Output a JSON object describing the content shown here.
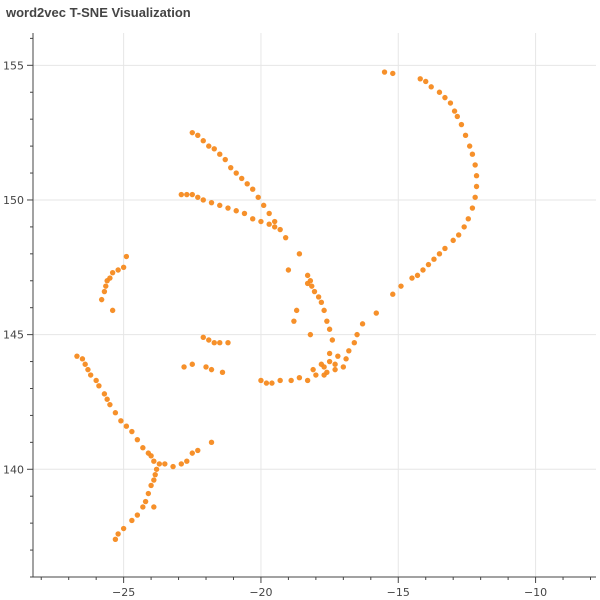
{
  "chart_data": {
    "type": "scatter",
    "title": "word2vec T-SNE Visualization",
    "xlabel": "",
    "ylabel": "",
    "xlim": [
      -28.3,
      -7.8
    ],
    "ylim": [
      136.0,
      156.2
    ],
    "x_ticks": [
      -25,
      -20,
      -15,
      -10
    ],
    "x_tick_labels": [
      "−25",
      "−20",
      "−15",
      "−10"
    ],
    "y_ticks": [
      140,
      145,
      150,
      155
    ],
    "y_tick_labels": [
      "140",
      "145",
      "150",
      "155"
    ],
    "grid": true,
    "legend": "none",
    "colors": {
      "point": "#f58a1f",
      "grid": "#e6e6e6",
      "axis": "#444444"
    },
    "series": [
      {
        "points": [
          [
            -15.5,
            154.75
          ],
          [
            -15.2,
            154.7
          ],
          [
            -14.2,
            154.5
          ],
          [
            -14.0,
            154.4
          ],
          [
            -13.8,
            154.2
          ],
          [
            -13.5,
            154.0
          ],
          [
            -13.3,
            153.8
          ],
          [
            -13.1,
            153.6
          ],
          [
            -12.95,
            153.3
          ],
          [
            -12.85,
            153.1
          ],
          [
            -12.7,
            152.8
          ],
          [
            -12.55,
            152.4
          ],
          [
            -12.4,
            152.0
          ],
          [
            -12.3,
            151.7
          ],
          [
            -12.2,
            151.3
          ],
          [
            -12.15,
            150.9
          ],
          [
            -12.15,
            150.5
          ],
          [
            -12.2,
            150.1
          ],
          [
            -12.3,
            149.7
          ],
          [
            -12.45,
            149.3
          ],
          [
            -12.6,
            149.0
          ],
          [
            -12.8,
            148.7
          ],
          [
            -13.0,
            148.5
          ],
          [
            -13.3,
            148.2
          ],
          [
            -13.5,
            148.0
          ],
          [
            -13.7,
            147.8
          ],
          [
            -13.9,
            147.6
          ],
          [
            -14.1,
            147.4
          ],
          [
            -14.3,
            147.2
          ],
          [
            -14.5,
            147.1
          ],
          [
            -14.9,
            146.8
          ],
          [
            -15.2,
            146.5
          ],
          [
            -15.8,
            145.8
          ],
          [
            -16.3,
            145.4
          ],
          [
            -16.5,
            145.0
          ],
          [
            -16.6,
            144.7
          ],
          [
            -16.8,
            144.4
          ],
          [
            -16.9,
            144.1
          ],
          [
            -17.0,
            143.8
          ],
          [
            -17.3,
            143.7
          ],
          [
            -17.6,
            143.6
          ],
          [
            -17.7,
            143.8
          ],
          [
            -17.8,
            143.9
          ],
          [
            -17.5,
            144.0
          ],
          [
            -17.2,
            144.2
          ],
          [
            -22.5,
            152.5
          ],
          [
            -22.3,
            152.4
          ],
          [
            -22.1,
            152.2
          ],
          [
            -21.9,
            152.0
          ],
          [
            -21.7,
            151.9
          ],
          [
            -21.5,
            151.7
          ],
          [
            -21.3,
            151.5
          ],
          [
            -21.1,
            151.2
          ],
          [
            -20.9,
            151.0
          ],
          [
            -20.7,
            150.8
          ],
          [
            -20.5,
            150.6
          ],
          [
            -20.3,
            150.4
          ],
          [
            -20.1,
            150.1
          ],
          [
            -19.9,
            149.8
          ],
          [
            -19.7,
            149.5
          ],
          [
            -19.5,
            149.2
          ],
          [
            -19.3,
            148.9
          ],
          [
            -19.1,
            148.6
          ],
          [
            -18.6,
            148.0
          ],
          [
            -19.0,
            147.4
          ],
          [
            -22.9,
            150.2
          ],
          [
            -22.7,
            150.2
          ],
          [
            -22.5,
            150.2
          ],
          [
            -22.3,
            150.1
          ],
          [
            -22.1,
            150.0
          ],
          [
            -21.8,
            149.9
          ],
          [
            -21.5,
            149.8
          ],
          [
            -21.2,
            149.7
          ],
          [
            -20.9,
            149.6
          ],
          [
            -20.6,
            149.5
          ],
          [
            -20.3,
            149.3
          ],
          [
            -20.0,
            149.2
          ],
          [
            -19.7,
            149.1
          ],
          [
            -19.5,
            149.0
          ],
          [
            -18.3,
            147.2
          ],
          [
            -18.2,
            147.0
          ],
          [
            -18.15,
            146.8
          ],
          [
            -18.05,
            146.6
          ],
          [
            -17.9,
            146.4
          ],
          [
            -17.8,
            146.2
          ],
          [
            -17.7,
            145.9
          ],
          [
            -17.6,
            145.5
          ],
          [
            -17.5,
            145.2
          ],
          [
            -17.4,
            144.8
          ],
          [
            -18.7,
            145.9
          ],
          [
            -18.8,
            145.5
          ],
          [
            -18.2,
            145.0
          ],
          [
            -18.3,
            146.9
          ],
          [
            -20.0,
            143.3
          ],
          [
            -19.8,
            143.2
          ],
          [
            -19.6,
            143.2
          ],
          [
            -19.3,
            143.3
          ],
          [
            -18.9,
            143.3
          ],
          [
            -18.6,
            143.4
          ],
          [
            -18.3,
            143.3
          ],
          [
            -18.0,
            143.5
          ],
          [
            -17.7,
            143.5
          ],
          [
            -18.1,
            143.7
          ],
          [
            -17.3,
            143.9
          ],
          [
            -17.5,
            144.3
          ],
          [
            -22.8,
            143.8
          ],
          [
            -22.5,
            143.9
          ],
          [
            -22.0,
            143.8
          ],
          [
            -21.8,
            143.7
          ],
          [
            -21.4,
            143.6
          ],
          [
            -22.1,
            144.9
          ],
          [
            -21.9,
            144.8
          ],
          [
            -21.7,
            144.7
          ],
          [
            -21.5,
            144.7
          ],
          [
            -21.2,
            144.7
          ],
          [
            -24.9,
            147.9
          ],
          [
            -25.0,
            147.5
          ],
          [
            -25.2,
            147.4
          ],
          [
            -25.4,
            147.3
          ],
          [
            -25.5,
            147.1
          ],
          [
            -25.6,
            147.0
          ],
          [
            -25.65,
            146.8
          ],
          [
            -25.7,
            146.6
          ],
          [
            -25.8,
            146.3
          ],
          [
            -25.4,
            145.9
          ],
          [
            -26.7,
            144.2
          ],
          [
            -26.5,
            144.1
          ],
          [
            -26.4,
            143.9
          ],
          [
            -26.3,
            143.7
          ],
          [
            -26.2,
            143.5
          ],
          [
            -26.0,
            143.3
          ],
          [
            -25.9,
            143.1
          ],
          [
            -25.7,
            142.8
          ],
          [
            -25.6,
            142.6
          ],
          [
            -25.5,
            142.4
          ],
          [
            -25.3,
            142.1
          ],
          [
            -25.1,
            141.8
          ],
          [
            -24.9,
            141.6
          ],
          [
            -24.7,
            141.4
          ],
          [
            -24.5,
            141.1
          ],
          [
            -24.3,
            140.8
          ],
          [
            -24.1,
            140.6
          ],
          [
            -24.0,
            140.5
          ],
          [
            -23.9,
            140.3
          ],
          [
            -23.7,
            140.2
          ],
          [
            -23.5,
            140.2
          ],
          [
            -23.2,
            140.1
          ],
          [
            -22.7,
            140.3
          ],
          [
            -22.9,
            140.2
          ],
          [
            -22.5,
            140.6
          ],
          [
            -22.3,
            140.7
          ],
          [
            -21.8,
            141.0
          ],
          [
            -23.8,
            140.0
          ],
          [
            -23.85,
            139.8
          ],
          [
            -23.9,
            139.6
          ],
          [
            -24.0,
            139.4
          ],
          [
            -24.1,
            139.1
          ],
          [
            -24.2,
            138.8
          ],
          [
            -24.3,
            138.6
          ],
          [
            -24.5,
            138.3
          ],
          [
            -24.7,
            138.1
          ],
          [
            -25.0,
            137.8
          ],
          [
            -25.2,
            137.6
          ],
          [
            -25.3,
            137.4
          ],
          [
            -23.9,
            138.6
          ]
        ]
      }
    ]
  }
}
